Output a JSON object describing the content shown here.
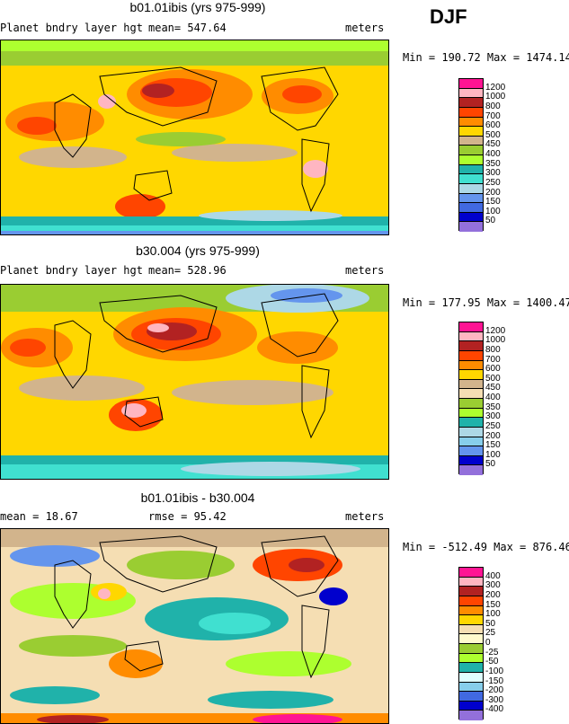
{
  "season": "DJF",
  "panels": [
    {
      "title": "b01.01ibis (yrs 975-999)",
      "left_label": "Planet bndry layer hgt",
      "stat_label": "mean=  547.64",
      "units": "meters",
      "minmax": "Min = 190.72 Max = 1474.14",
      "levels": [
        "1200",
        "1000",
        "800",
        "700",
        "600",
        "500",
        "450",
        "400",
        "350",
        "300",
        "250",
        "200",
        "150",
        "100",
        "50"
      ],
      "colors": [
        "#ff1493",
        "#ffb6c1",
        "#b22222",
        "#ff4500",
        "#ff8c00",
        "#ffd700",
        "#d2b48c",
        "#9acd32",
        "#adff2f",
        "#20b2aa",
        "#40e0d0",
        "#add8e6",
        "#6495ed",
        "#4169e1",
        "#0000cd",
        "#9370db"
      ]
    },
    {
      "title": "b30.004 (yrs 975-999)",
      "left_label": "Planet bndry layer hgt",
      "stat_label": "mean=  528.96",
      "units": "meters",
      "minmax": "Min = 177.95 Max = 1400.47",
      "levels": [
        "1200",
        "1000",
        "800",
        "700",
        "600",
        "500",
        "450",
        "400",
        "350",
        "300",
        "250",
        "200",
        "150",
        "100",
        "50"
      ],
      "colors": [
        "#ff1493",
        "#ffb6c1",
        "#b22222",
        "#ff4500",
        "#ff8c00",
        "#ffd700",
        "#d2b48c",
        "#f5deb3",
        "#9acd32",
        "#adff2f",
        "#20b2aa",
        "#add8e6",
        "#87ceeb",
        "#6495ed",
        "#0000cd",
        "#9370db"
      ]
    },
    {
      "title": "b01.01ibis - b30.004",
      "left_label": "mean =   18.67",
      "stat_label": "rmse =   95.42",
      "units": "meters",
      "minmax": "Min = -512.49 Max = 876.46",
      "levels": [
        "400",
        "300",
        "200",
        "150",
        "100",
        "50",
        "25",
        "0",
        "-25",
        "-50",
        "-100",
        "-150",
        "-200",
        "-300",
        "-400"
      ],
      "colors": [
        "#ff1493",
        "#ffb6c1",
        "#b22222",
        "#ff4500",
        "#ff8c00",
        "#ffd700",
        "#f5deb3",
        "#fffacd",
        "#9acd32",
        "#adff2f",
        "#20b2aa",
        "#e0ffff",
        "#87ceeb",
        "#4169e1",
        "#0000cd",
        "#9370db"
      ]
    }
  ]
}
